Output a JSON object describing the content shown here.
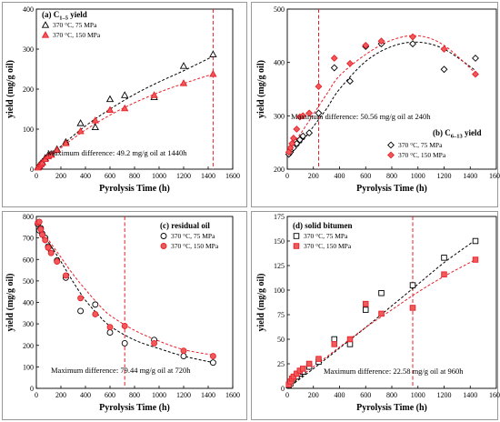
{
  "colors": {
    "black": "#000000",
    "red": "#e8202a",
    "marker_red": "#f05a5a",
    "frame": "#7f7f7f"
  },
  "chart_data": [
    {
      "id": "a",
      "type": "scatter",
      "title": "(a) C",
      "title_sub": "1–5",
      "title_tail": " yield",
      "xlabel": "Pyrolysis Time (h)",
      "ylabel": "yield (mg/g oil)",
      "xlim": [
        0,
        1600
      ],
      "ylim": [
        0,
        400
      ],
      "xticks": [
        0,
        200,
        400,
        600,
        800,
        1000,
        1200,
        1400,
        1600
      ],
      "yticks": [
        0,
        100,
        200,
        300,
        400
      ],
      "grid": false,
      "legend_position": "top-left",
      "vline_x": 1440,
      "annotation": "Maximum difference: 49.2 mg/g oil at 1440h",
      "series": [
        {
          "name": "370 °C, 75 MPa",
          "marker": "triangle-open",
          "color": "#000000",
          "x": [
            12,
            24,
            36,
            48,
            72,
            96,
            120,
            168,
            240,
            360,
            480,
            600,
            720,
            960,
            1200,
            1440
          ],
          "y": [
            5,
            10,
            14,
            18,
            28,
            35,
            38,
            50,
            68,
            115,
            105,
            175,
            185,
            180,
            258,
            287
          ],
          "fit": [
            [
              0,
              0
            ],
            [
              200,
              57
            ],
            [
              400,
              108
            ],
            [
              600,
              150
            ],
            [
              800,
              187
            ],
            [
              1000,
              218
            ],
            [
              1200,
              246
            ],
            [
              1440,
              282
            ]
          ]
        },
        {
          "name": "370 °C, 150 MPa",
          "marker": "triangle-filled",
          "color": "#e8202a",
          "x": [
            12,
            24,
            36,
            48,
            72,
            96,
            120,
            168,
            240,
            360,
            480,
            600,
            720,
            960,
            1200,
            1440
          ],
          "y": [
            4,
            8,
            12,
            16,
            25,
            32,
            36,
            48,
            65,
            95,
            122,
            148,
            152,
            185,
            215,
            238
          ],
          "fit": [
            [
              0,
              0
            ],
            [
              200,
              53
            ],
            [
              400,
              98
            ],
            [
              600,
              135
            ],
            [
              800,
              166
            ],
            [
              1000,
              192
            ],
            [
              1200,
              214
            ],
            [
              1440,
              238
            ]
          ]
        }
      ]
    },
    {
      "id": "b",
      "type": "scatter",
      "title": "(b) C",
      "title_sub": "6–13",
      "title_tail": " yield",
      "xlabel": "Pyrolysis Time (h)",
      "ylabel": "yield (mg/g oil)",
      "xlim": [
        0,
        1600
      ],
      "ylim": [
        200,
        500
      ],
      "xticks": [
        0,
        200,
        400,
        600,
        800,
        1000,
        1200,
        1400,
        1600
      ],
      "yticks": [
        200,
        300,
        400,
        500
      ],
      "grid": false,
      "legend_position": "bottom-right",
      "vline_x": 240,
      "annotation": "Maximum difference: 50.56 mg/g oil at 240h",
      "series": [
        {
          "name": "370 °C, 75 MPa",
          "marker": "diamond-open",
          "color": "#000000",
          "x": [
            12,
            24,
            36,
            48,
            72,
            96,
            120,
            168,
            240,
            360,
            480,
            600,
            720,
            960,
            1200,
            1440
          ],
          "y": [
            228,
            232,
            238,
            240,
            248,
            255,
            262,
            268,
            305,
            390,
            365,
            430,
            435,
            435,
            387,
            408
          ],
          "fit": [
            [
              0,
              225
            ],
            [
              100,
              248
            ],
            [
              200,
              280
            ],
            [
              300,
              313
            ],
            [
              400,
              350
            ],
            [
              600,
              402
            ],
            [
              800,
              430
            ],
            [
              1000,
              438
            ],
            [
              1200,
              425
            ],
            [
              1440,
              385
            ]
          ]
        },
        {
          "name": "370 °C, 150 MPa",
          "marker": "diamond-filled",
          "color": "#e8202a",
          "x": [
            12,
            24,
            36,
            48,
            72,
            96,
            120,
            168,
            240,
            360,
            480,
            600,
            720,
            960,
            1200,
            1440
          ],
          "y": [
            232,
            240,
            248,
            258,
            275,
            298,
            300,
            305,
            355,
            408,
            398,
            432,
            440,
            448,
            425,
            378
          ],
          "fit": [
            [
              0,
              235
            ],
            [
              100,
              266
            ],
            [
              200,
              303
            ],
            [
              300,
              340
            ],
            [
              400,
              375
            ],
            [
              600,
              415
            ],
            [
              800,
              442
            ],
            [
              1000,
              450
            ],
            [
              1200,
              432
            ],
            [
              1440,
              380
            ]
          ]
        }
      ]
    },
    {
      "id": "c",
      "type": "scatter",
      "title": "(c) residual oil",
      "xlabel": "Pyrolysis Time (h)",
      "ylabel": "yield (mg/g oil)",
      "xlim": [
        0,
        1600
      ],
      "ylim": [
        0,
        800
      ],
      "xticks": [
        0,
        200,
        400,
        600,
        800,
        1000,
        1200,
        1400,
        1600
      ],
      "yticks": [
        0,
        100,
        200,
        300,
        400,
        500,
        600,
        700,
        800
      ],
      "grid": false,
      "legend_position": "top-right",
      "vline_x": 720,
      "annotation": "Maximum difference: 79.44 mg/g oil at 720h",
      "series": [
        {
          "name": "370 °C, 75 MPa",
          "marker": "circle-open",
          "color": "#000000",
          "x": [
            12,
            24,
            36,
            48,
            72,
            96,
            120,
            168,
            240,
            360,
            480,
            600,
            720,
            960,
            1200,
            1440
          ],
          "y": [
            765,
            735,
            745,
            720,
            700,
            660,
            640,
            595,
            515,
            360,
            390,
            260,
            210,
            225,
            150,
            120
          ],
          "fit": [
            [
              0,
              770
            ],
            [
              100,
              680
            ],
            [
              200,
              590
            ],
            [
              300,
              495
            ],
            [
              400,
              410
            ],
            [
              500,
              345
            ],
            [
              600,
              290
            ],
            [
              800,
              225
            ],
            [
              1000,
              185
            ],
            [
              1200,
              150
            ],
            [
              1440,
              120
            ]
          ]
        },
        {
          "name": "370 °C, 150 MPa",
          "marker": "circle-filled",
          "color": "#e8202a",
          "x": [
            12,
            24,
            36,
            48,
            72,
            96,
            120,
            168,
            240,
            360,
            480,
            600,
            720,
            960,
            1200,
            1440
          ],
          "y": [
            770,
            775,
            740,
            715,
            690,
            655,
            630,
            590,
            525,
            420,
            345,
            285,
            290,
            210,
            175,
            150
          ],
          "fit": [
            [
              0,
              775
            ],
            [
              100,
              690
            ],
            [
              200,
              610
            ],
            [
              300,
              530
            ],
            [
              400,
              460
            ],
            [
              500,
              395
            ],
            [
              600,
              340
            ],
            [
              800,
              270
            ],
            [
              1000,
              220
            ],
            [
              1200,
              180
            ],
            [
              1440,
              155
            ]
          ]
        }
      ]
    },
    {
      "id": "d",
      "type": "scatter",
      "title": "(d) solid bitumen",
      "xlabel": "Pyrolysis Time (h)",
      "ylabel": "yield (mg/g oil)",
      "xlim": [
        0,
        1600
      ],
      "ylim": [
        0,
        175
      ],
      "xticks": [
        0,
        200,
        400,
        600,
        800,
        1000,
        1200,
        1400,
        1600
      ],
      "yticks": [
        0,
        25,
        50,
        75,
        100,
        125,
        150,
        175
      ],
      "grid": false,
      "legend_position": "top-left",
      "vline_x": 960,
      "annotation": "Maximum difference: 22.58 mg/g oil at 960h",
      "series": [
        {
          "name": "370 °C, 75 MPa",
          "marker": "square-open",
          "color": "#000000",
          "x": [
            12,
            24,
            36,
            48,
            72,
            96,
            120,
            168,
            240,
            360,
            480,
            600,
            720,
            960,
            1200,
            1440
          ],
          "y": [
            3,
            5,
            8,
            10,
            12,
            15,
            17,
            22,
            27,
            50,
            45,
            80,
            97,
            105,
            133,
            150
          ],
          "fit": [
            [
              0,
              0
            ],
            [
              200,
              20
            ],
            [
              400,
              41
            ],
            [
              600,
              62
            ],
            [
              800,
              84
            ],
            [
              1000,
              106
            ],
            [
              1200,
              128
            ],
            [
              1440,
              151
            ]
          ]
        },
        {
          "name": "370 °C, 150 MPa",
          "marker": "square-filled",
          "color": "#e8202a",
          "x": [
            12,
            24,
            36,
            48,
            72,
            96,
            120,
            168,
            240,
            360,
            480,
            600,
            720,
            960,
            1200,
            1440
          ],
          "y": [
            4,
            7,
            10,
            12,
            15,
            18,
            20,
            25,
            30,
            45,
            50,
            86,
            76,
            82,
            116,
            131
          ],
          "fit": [
            [
              0,
              2
            ],
            [
              200,
              22
            ],
            [
              400,
              42
            ],
            [
              600,
              62
            ],
            [
              800,
              80
            ],
            [
              1000,
              98
            ],
            [
              1200,
              114
            ],
            [
              1440,
              131
            ]
          ]
        }
      ]
    }
  ]
}
